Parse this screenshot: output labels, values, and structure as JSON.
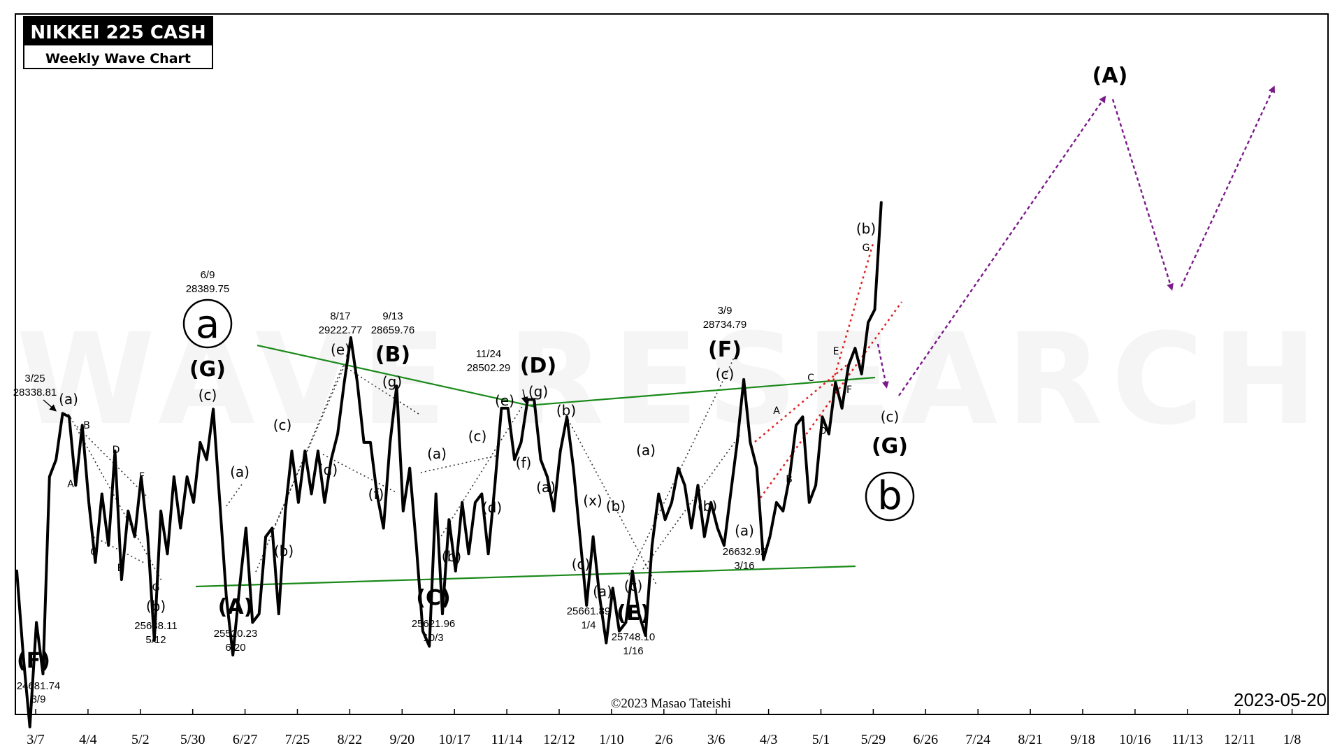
{
  "title_box": {
    "title": "NIKKEI 225 CASH",
    "subtitle": "Weekly Wave Chart"
  },
  "watermark": "WAVE RESEARCH",
  "copyright": "©2023 Masao Tateishi",
  "date_stamp": "2023-05-20",
  "colors": {
    "price": "#000000",
    "trend_line": "#1a8a1a",
    "channel": "#e02020",
    "projection": "#7a1a8a",
    "guide": "#333333"
  },
  "chart_data": {
    "type": "line",
    "title": "NIKKEI 225 CASH",
    "subtitle": "Weekly Wave Chart",
    "xlabel": "",
    "ylabel": "",
    "grid": false,
    "x_tick_labels": [
      "3/7",
      "4/4",
      "5/2",
      "5/30",
      "6/27",
      "7/25",
      "8/22",
      "9/20",
      "10/17",
      "11/14",
      "12/12",
      "1/10",
      "2/6",
      "3/6",
      "4/3",
      "5/1",
      "5/29",
      "6/26",
      "7/24",
      "8/21",
      "9/18",
      "10/16",
      "11/13",
      "12/11",
      "1/8"
    ],
    "y_tick_labels": [],
    "series": [
      {
        "values": [
          26500,
          25500,
          24681.74,
          25900,
          25300,
          27600,
          27800,
          28338.81,
          28300,
          27500,
          28200,
          27300,
          26600,
          27400,
          26800,
          27900,
          26400,
          27200,
          26900,
          27600,
          26900,
          25688.11,
          27200,
          26700,
          27600,
          27000,
          27600,
          27300,
          28000,
          27800,
          28389.75,
          27300,
          26200,
          25520.23,
          26300,
          27000,
          25900,
          26000,
          26900,
          27000,
          26000,
          27200,
          27900,
          27300,
          27900,
          27400,
          27900,
          27300,
          27800,
          28100,
          28700,
          29222.77,
          28700,
          28000,
          28000,
          27400,
          27000,
          28000,
          28659.76,
          27200,
          27700,
          26800,
          25800,
          25621.96,
          27400,
          26000,
          27100,
          26500,
          27300,
          26700,
          27300,
          27400,
          26700,
          27500,
          28400,
          28400,
          27800,
          28000,
          28500,
          28502.29,
          27800,
          27600,
          27200,
          27900,
          28300,
          27700,
          26900,
          26100,
          26900,
          26200,
          25661.89,
          26300,
          25800,
          25900,
          26500,
          26000,
          25748.1,
          26800,
          27400,
          27100,
          27300,
          27700,
          27500,
          27000,
          27500,
          26900,
          27300,
          27000,
          26800,
          27400,
          28000,
          28734.79,
          28000,
          27700,
          26632.92,
          26900,
          27300,
          27200,
          27600,
          28200,
          28300,
          27300,
          27500,
          28300,
          28100,
          28700,
          28400,
          28900,
          29100,
          28800,
          29400,
          29550,
          30800
        ]
      }
    ],
    "wave_labels": [
      "(F)",
      "(a)",
      "(b)",
      "(G)",
      "(c)",
      "(A)",
      "(a)",
      "(b)",
      "(c)",
      "(d)",
      "(e)",
      "(f)",
      "(g)",
      "(B)",
      "(C)",
      "(a)",
      "(b)",
      "(c)",
      "(d)",
      "(e)",
      "(f)",
      "(g)",
      "(D)",
      "(a)",
      "(b)",
      "(c)",
      "(x)",
      "(a)",
      "(b)",
      "(c)",
      "(E)",
      "(a)",
      "(b)",
      "(c)",
      "(F)",
      "(a)",
      "(b)",
      "(c)",
      "(G)",
      "(A)",
      "A",
      "B",
      "C",
      "D",
      "E",
      "F",
      "G",
      "a",
      "b"
    ],
    "annotations": [
      {
        "date": "3/9",
        "value": "24681.74"
      },
      {
        "date": "3/25",
        "value": "28338.81"
      },
      {
        "date": "5/12",
        "value": "25688.11"
      },
      {
        "date": "6/9",
        "value": "28389.75"
      },
      {
        "date": "6/20",
        "value": "25520.23"
      },
      {
        "date": "8/17",
        "value": "29222.77"
      },
      {
        "date": "9/13",
        "value": "28659.76"
      },
      {
        "date": "10/3",
        "value": "25621.96"
      },
      {
        "date": "11/24",
        "value": "28502.29"
      },
      {
        "date": "1/4",
        "value": "25661.89"
      },
      {
        "date": "1/16",
        "value": "25748.10"
      },
      {
        "date": "3/9",
        "value": "28734.79"
      },
      {
        "date": "3/16",
        "value": "26632.92"
      }
    ]
  }
}
